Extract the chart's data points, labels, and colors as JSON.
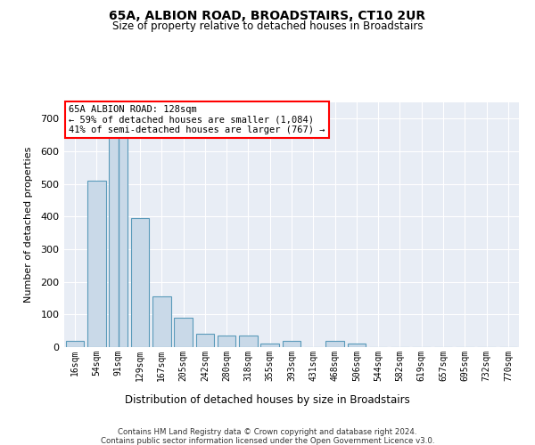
{
  "title1": "65A, ALBION ROAD, BROADSTAIRS, CT10 2UR",
  "title2": "Size of property relative to detached houses in Broadstairs",
  "xlabel": "Distribution of detached houses by size in Broadstairs",
  "ylabel": "Number of detached properties",
  "footer1": "Contains HM Land Registry data © Crown copyright and database right 2024.",
  "footer2": "Contains public sector information licensed under the Open Government Licence v3.0.",
  "annotation_title": "65A ALBION ROAD: 128sqm",
  "annotation_line1": "← 59% of detached houses are smaller (1,084)",
  "annotation_line2": "41% of semi-detached houses are larger (767) →",
  "bar_color": "#c9d9e8",
  "bar_edge_color": "#5a9aba",
  "plot_bg_color": "#e8edf5",
  "bins": [
    "16sqm",
    "54sqm",
    "91sqm",
    "129sqm",
    "167sqm",
    "205sqm",
    "242sqm",
    "280sqm",
    "318sqm",
    "355sqm",
    "393sqm",
    "431sqm",
    "468sqm",
    "506sqm",
    "544sqm",
    "582sqm",
    "619sqm",
    "657sqm",
    "695sqm",
    "732sqm",
    "770sqm"
  ],
  "values": [
    20,
    510,
    645,
    395,
    155,
    90,
    40,
    35,
    35,
    10,
    20,
    0,
    20,
    10,
    0,
    0,
    0,
    0,
    0,
    0,
    0
  ],
  "ylim": [
    0,
    750
  ],
  "yticks": [
    0,
    100,
    200,
    300,
    400,
    500,
    600,
    700
  ],
  "property_bin_index": 2
}
